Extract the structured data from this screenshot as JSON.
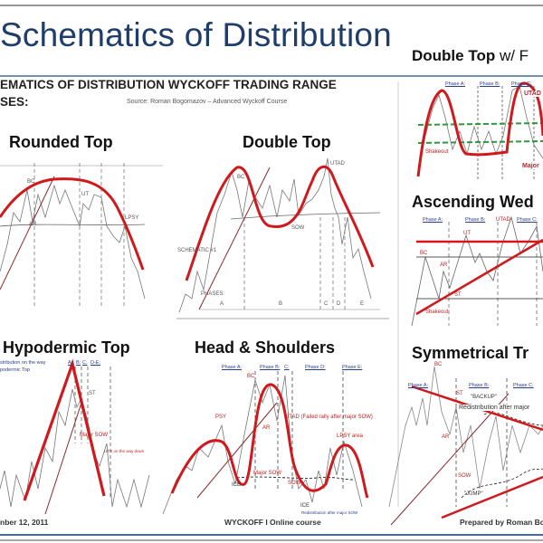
{
  "slide": {
    "title": "Schematics of Distribution",
    "subtitle_line1": "EMATICS OF DISTRIBUTION WYCKOFF TRADING RANGE",
    "subtitle_line2": "SES:",
    "source": "Source: Roman Bogomazov – Advanced Wyckoff Course",
    "accent_color": "#1f3d6b",
    "curve_color": "#d0191c"
  },
  "panels": {
    "double_top_w": {
      "title_bold": "Double Top",
      "title_rest": " w/ F",
      "phases": [
        "Phase A:",
        "Phase B:",
        "Phase C:"
      ],
      "labels": [
        "UTAD",
        "Shakeout",
        "Major"
      ]
    },
    "rounded_top": {
      "title": "Rounded Top",
      "labels": [
        "BC",
        "AR",
        "LPSY",
        "UT"
      ]
    },
    "double_top": {
      "title": "Double Top",
      "labels": [
        "BC",
        "UTAD",
        "SOW",
        "A",
        "B",
        "C",
        "D",
        "E",
        "PHASES:",
        "SCHEMATIC #1"
      ]
    },
    "ascending_wedge": {
      "title": "Ascending Wed",
      "phases": [
        "Phase A:",
        "Phase B:",
        "UTAD",
        "Phase C:"
      ],
      "labels": [
        "UT",
        "BC",
        "AR",
        "ST",
        "Shakeout"
      ]
    },
    "hypodermic_top": {
      "title": "Hypodermic Top",
      "notes": [
        "stribution on the way",
        "podermic Top"
      ],
      "phases": [
        "A:",
        "B:",
        "C:",
        "D-E:"
      ],
      "labels": [
        "ST",
        "Major SOW",
        "UTR on the way down"
      ]
    },
    "head_shoulders": {
      "title": "Head & Shoulders",
      "phases": [
        "Phase A:",
        "Phase B:",
        "C:",
        "Phase D:",
        "Phase E:"
      ],
      "labels": [
        "BC",
        "PSY",
        "AR",
        "ICE",
        "Major SOW",
        "UTAD (Failed rally after major SOW)",
        "LPSY area",
        "SOW",
        "ICE",
        "Redistribution after major SOW"
      ]
    },
    "symmetrical_triangle": {
      "title": "Symmetrical Tr",
      "phases": [
        "Phase A:",
        "Phase B:",
        "Phase C:"
      ],
      "labels": [
        "BC",
        "ST",
        "AR",
        "SOW",
        "\"JUMP\"",
        "\"BACKUP\"",
        "Redistribution after major"
      ]
    }
  },
  "footer": {
    "date": "nber 12, 2011",
    "course": "WYCKOFF I Online course",
    "author": "Prepared by Roman Bog"
  }
}
